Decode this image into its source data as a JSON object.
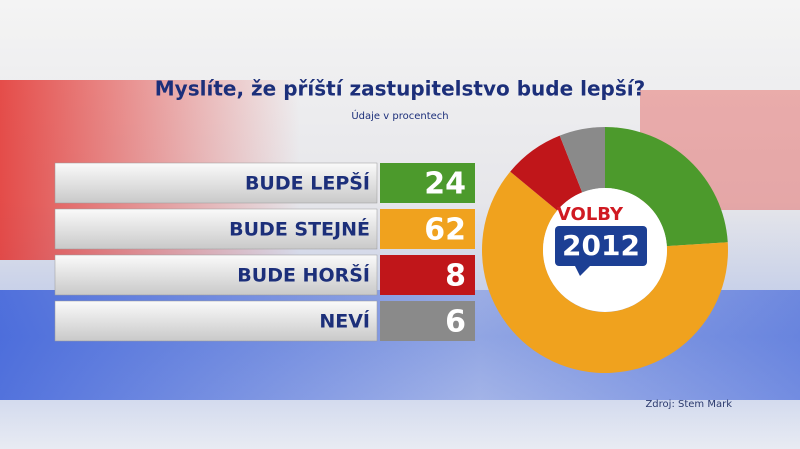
{
  "chart_data": {
    "type": "pie",
    "title": "Myslíte, že příští zastupitelstvo bude lepší?",
    "subtitle": "Údaje v procentech",
    "categories": [
      "BUDE LEPŠÍ",
      "BUDE STEJNÉ",
      "BUDE HORŠÍ",
      "NEVÍ"
    ],
    "values": [
      24,
      62,
      8,
      6
    ],
    "colors": [
      "#4c9a2c",
      "#f0a21e",
      "#c0161a",
      "#8a8a8a"
    ],
    "source": "Zdroj: Stem Mark"
  },
  "logo": {
    "top": "VOLBY",
    "bottom": "2012"
  }
}
